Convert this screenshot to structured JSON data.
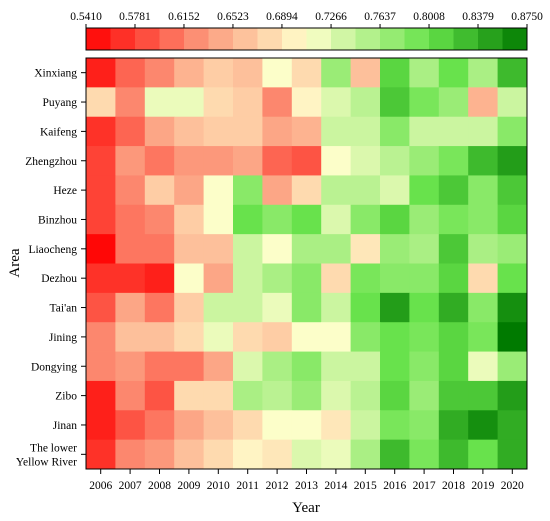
{
  "chart_data": {
    "type": "heatmap",
    "xlabel": "Year",
    "ylabel": "Area",
    "x": [
      "2006",
      "2007",
      "2008",
      "2009",
      "2010",
      "2011",
      "2012",
      "2013",
      "2014",
      "2015",
      "2016",
      "2017",
      "2018",
      "2019",
      "2020"
    ],
    "rows": [
      {
        "name": "Xinxiang",
        "values": [
          0.56,
          0.6,
          0.62,
          0.65,
          0.67,
          0.66,
          0.71,
          0.68,
          0.77,
          0.66,
          0.81,
          0.76,
          0.8,
          0.76,
          0.83
        ]
      },
      {
        "name": "Puyang",
        "values": [
          0.68,
          0.62,
          0.72,
          0.72,
          0.68,
          0.67,
          0.62,
          0.7,
          0.73,
          0.75,
          0.82,
          0.79,
          0.77,
          0.65,
          0.74
        ]
      },
      {
        "name": "Kaifeng",
        "values": [
          0.57,
          0.6,
          0.64,
          0.66,
          0.67,
          0.67,
          0.64,
          0.65,
          0.74,
          0.74,
          0.78,
          0.74,
          0.74,
          0.74,
          0.78
        ]
      },
      {
        "name": "Zhengzhou",
        "values": [
          0.58,
          0.63,
          0.61,
          0.63,
          0.63,
          0.64,
          0.6,
          0.59,
          0.71,
          0.73,
          0.75,
          0.77,
          0.79,
          0.83,
          0.85
        ]
      },
      {
        "name": "Heze",
        "values": [
          0.58,
          0.62,
          0.67,
          0.64,
          0.71,
          0.78,
          0.64,
          0.68,
          0.75,
          0.75,
          0.73,
          0.8,
          0.82,
          0.78,
          0.82
        ]
      },
      {
        "name": "Binzhou",
        "values": [
          0.58,
          0.61,
          0.62,
          0.67,
          0.71,
          0.8,
          0.78,
          0.8,
          0.73,
          0.78,
          0.81,
          0.77,
          0.79,
          0.78,
          0.81
        ]
      },
      {
        "name": "Liaocheng",
        "values": [
          0.545,
          0.61,
          0.61,
          0.66,
          0.66,
          0.74,
          0.71,
          0.76,
          0.76,
          0.69,
          0.77,
          0.76,
          0.82,
          0.76,
          0.77
        ]
      },
      {
        "name": "Dezhou",
        "values": [
          0.57,
          0.57,
          0.56,
          0.71,
          0.64,
          0.74,
          0.76,
          0.78,
          0.68,
          0.79,
          0.78,
          0.78,
          0.81,
          0.68,
          0.8
        ]
      },
      {
        "name": "Tai'an",
        "values": [
          0.59,
          0.64,
          0.61,
          0.67,
          0.74,
          0.74,
          0.72,
          0.78,
          0.74,
          0.8,
          0.85,
          0.8,
          0.84,
          0.78,
          0.86
        ]
      },
      {
        "name": "Jining",
        "values": [
          0.62,
          0.66,
          0.66,
          0.68,
          0.72,
          0.68,
          0.67,
          0.71,
          0.71,
          0.78,
          0.8,
          0.79,
          0.81,
          0.79,
          0.875
        ]
      },
      {
        "name": "Dongying",
        "values": [
          0.62,
          0.63,
          0.61,
          0.61,
          0.64,
          0.73,
          0.76,
          0.78,
          0.74,
          0.74,
          0.8,
          0.78,
          0.81,
          0.72,
          0.77
        ]
      },
      {
        "name": "Zibo",
        "values": [
          0.56,
          0.62,
          0.59,
          0.68,
          0.68,
          0.76,
          0.75,
          0.77,
          0.73,
          0.75,
          0.81,
          0.77,
          0.82,
          0.82,
          0.85
        ]
      },
      {
        "name": "Jinan",
        "values": [
          0.56,
          0.59,
          0.61,
          0.64,
          0.66,
          0.68,
          0.71,
          0.71,
          0.69,
          0.74,
          0.79,
          0.78,
          0.84,
          0.86,
          0.84
        ]
      },
      {
        "name": "The lower Yellow River",
        "label_lines": [
          "The lower",
          "Yellow River"
        ],
        "values": [
          0.57,
          0.62,
          0.63,
          0.66,
          0.68,
          0.7,
          0.69,
          0.73,
          0.72,
          0.76,
          0.83,
          0.79,
          0.83,
          0.8,
          0.84
        ]
      }
    ],
    "colorbar": {
      "min": 0.541,
      "max": 0.875,
      "tick_values": [
        0.541,
        0.5781,
        0.6152,
        0.6523,
        0.6894,
        0.7266,
        0.7637,
        0.8008,
        0.8379,
        0.875
      ],
      "tick_labels": [
        "0.5410",
        "0.5781",
        "0.6152",
        "0.6523",
        "0.6894",
        "0.7266",
        "0.7637",
        "0.8008",
        "0.8379",
        "0.8750"
      ],
      "steps": 18,
      "placement": "top",
      "color_stops": [
        {
          "v": 0.0,
          "color": "#ff0000"
        },
        {
          "v": 0.27,
          "color": "#fc9a7d"
        },
        {
          "v": 0.5,
          "color": "#ffffcc"
        },
        {
          "v": 0.78,
          "color": "#66e24a"
        },
        {
          "v": 1.0,
          "color": "#007a00"
        }
      ]
    }
  }
}
